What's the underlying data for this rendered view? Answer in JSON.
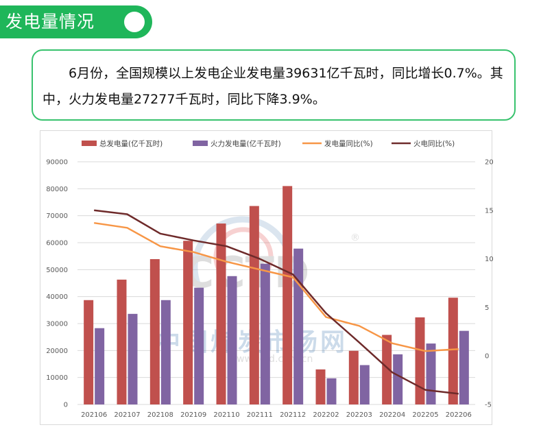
{
  "header": {
    "title": "发电量情况"
  },
  "summary": {
    "text": "6月份，全国规模以上发电企业发电量39631亿千瓦时，同比增长0.7%。其中，火力发电量27277千瓦时，同比下降3.9%。"
  },
  "watermark": {
    "logo": "CCTD",
    "mark": "®",
    "cn": "中国煤炭市场网",
    "url": "www.cctd.com.cn"
  },
  "colors": {
    "total": "#c0504d",
    "thermal": "#8064a2",
    "total_yoy": "#f79646",
    "thermal_yoy": "#6e2a2a",
    "accent": "#1fb65a"
  },
  "chart_data": {
    "type": "bar",
    "categories": [
      "202106",
      "202107",
      "202108",
      "202109",
      "202110",
      "202111",
      "202112",
      "202202",
      "202203",
      "202204",
      "202205",
      "202206"
    ],
    "series": [
      {
        "name": "总发电量(亿千瓦时)",
        "type": "bar",
        "axis": "left",
        "values": [
          38700,
          46300,
          53900,
          60700,
          67100,
          73600,
          81000,
          13000,
          19900,
          25800,
          32300,
          39600
        ]
      },
      {
        "name": "火力发电量(亿千瓦时)",
        "type": "bar",
        "axis": "left",
        "values": [
          28300,
          33600,
          38700,
          43300,
          47600,
          52200,
          57800,
          9700,
          14600,
          18600,
          22600,
          27300
        ]
      },
      {
        "name": "发电量同比(%)",
        "type": "line",
        "axis": "right",
        "values": [
          13.7,
          13.2,
          11.3,
          10.7,
          9.7,
          8.9,
          8.1,
          4.0,
          3.1,
          1.3,
          0.5,
          0.7
        ]
      },
      {
        "name": "火电同比(%)",
        "type": "line",
        "axis": "right",
        "values": [
          15.0,
          14.6,
          12.6,
          11.9,
          11.3,
          10.0,
          8.4,
          4.4,
          1.4,
          -1.7,
          -3.5,
          -3.9
        ]
      }
    ],
    "yleft": {
      "min": 0,
      "max": 90000,
      "ticks": [
        "0",
        "10000",
        "20000",
        "30000",
        "40000",
        "50000",
        "60000",
        "70000",
        "80000",
        "90000"
      ]
    },
    "yright": {
      "min": -5,
      "max": 20,
      "ticks": [
        "-5",
        "0",
        "5",
        "10",
        "15",
        "20"
      ]
    },
    "grid": true,
    "legend": "top"
  }
}
